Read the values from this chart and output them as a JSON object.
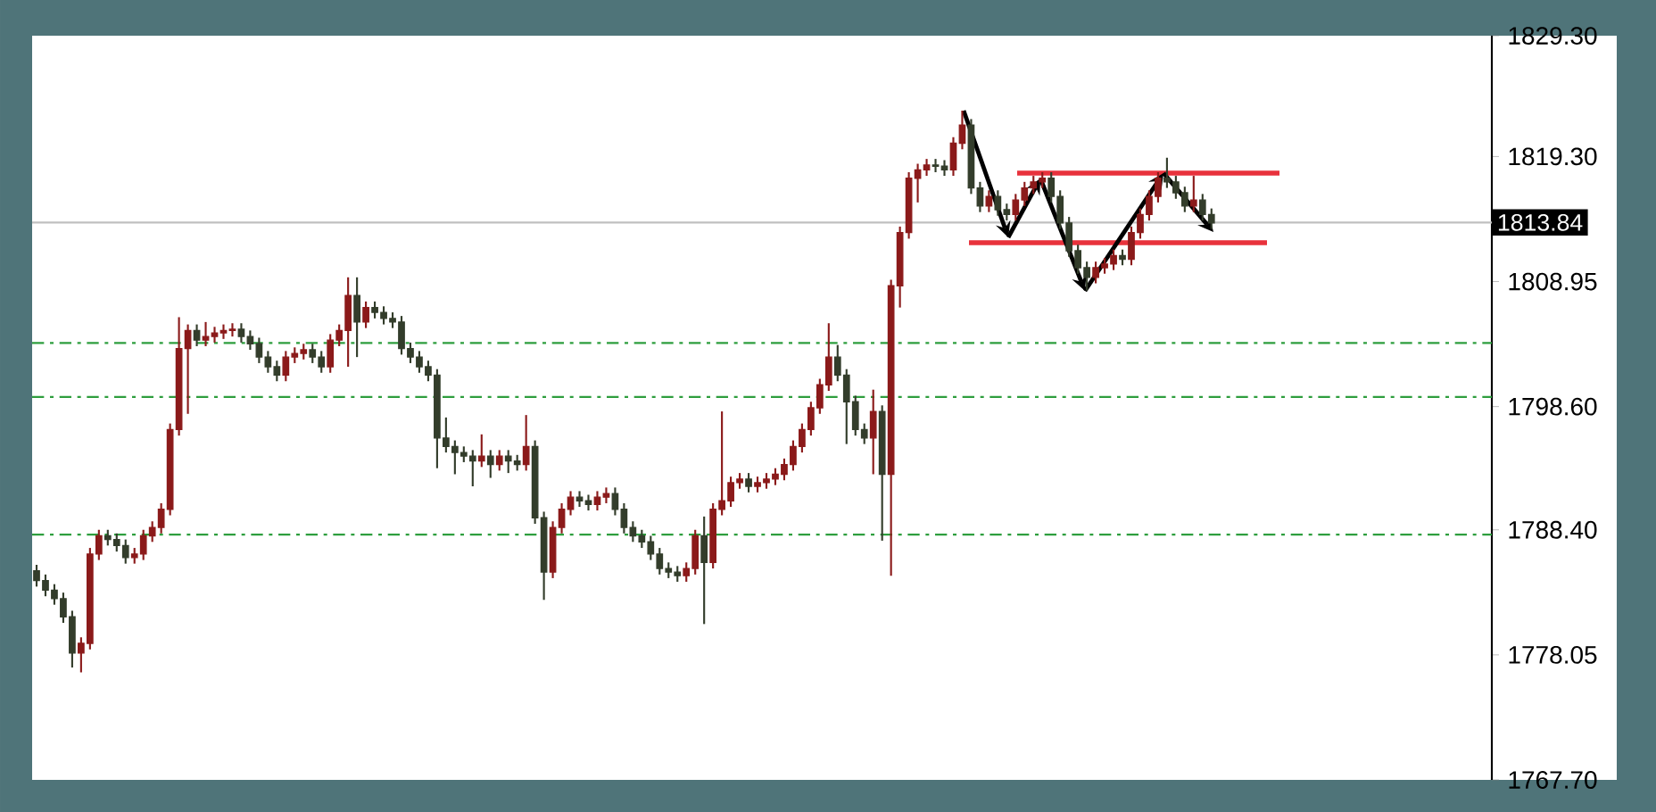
{
  "chart_data": {
    "type": "candlestick",
    "categories": [
      null,
      null,
      null,
      null,
      null,
      null,
      null,
      null,
      null,
      null,
      null,
      null,
      null,
      null,
      null,
      null,
      null,
      null,
      null,
      null,
      null,
      null,
      null,
      null,
      null,
      null,
      null,
      null,
      null,
      null,
      null,
      null,
      null,
      null,
      null,
      null,
      null,
      null,
      null,
      null,
      null,
      null,
      null,
      null,
      null,
      null,
      null,
      null,
      null,
      null,
      null,
      null,
      null,
      null,
      null,
      null,
      null,
      null,
      null,
      null,
      null,
      null,
      null,
      null,
      null,
      null,
      null,
      null,
      null,
      null,
      null,
      null,
      null,
      null,
      null,
      null,
      null,
      null,
      null,
      null,
      null,
      null,
      null,
      null,
      null,
      null,
      null,
      null,
      null,
      null,
      null,
      null,
      null,
      null,
      null,
      null,
      null,
      null,
      null,
      null,
      null,
      null,
      null,
      null,
      null,
      null,
      null,
      null,
      null,
      null,
      null,
      null,
      null,
      null,
      null,
      null,
      null,
      null,
      null,
      null,
      null,
      null,
      null,
      null,
      null,
      null,
      null,
      null,
      null,
      null,
      null,
      null,
      null,
      null,
      null,
      null,
      null,
      null,
      null,
      null,
      null,
      null,
      null,
      null,
      null,
      null,
      null,
      null,
      null,
      null,
      null,
      null,
      null,
      null,
      null,
      null,
      null,
      null,
      null,
      null,
      null,
      null,
      null,
      null
    ],
    "ohlc": [
      [
        1785.0,
        1785.5,
        1783.7,
        1784.2
      ],
      [
        1784.2,
        1784.7,
        1782.9,
        1783.4
      ],
      [
        1783.4,
        1783.9,
        1782.2,
        1782.7
      ],
      [
        1782.7,
        1783.2,
        1780.7,
        1781.2
      ],
      [
        1781.2,
        1781.7,
        1777.0,
        1778.2
      ],
      [
        1778.2,
        1779.5,
        1776.6,
        1779.0
      ],
      [
        1779.0,
        1786.9,
        1778.5,
        1786.4
      ],
      [
        1786.4,
        1788.4,
        1785.9,
        1787.9
      ],
      [
        1787.9,
        1788.4,
        1787.1,
        1787.6
      ],
      [
        1787.6,
        1788.1,
        1786.6,
        1787.1
      ],
      [
        1787.1,
        1787.6,
        1785.6,
        1786.1
      ],
      [
        1786.1,
        1786.9,
        1785.6,
        1786.4
      ],
      [
        1786.4,
        1788.4,
        1785.9,
        1787.9
      ],
      [
        1787.9,
        1789.1,
        1787.4,
        1788.6
      ],
      [
        1788.6,
        1790.6,
        1788.1,
        1790.1
      ],
      [
        1790.1,
        1797.2,
        1789.6,
        1796.7
      ],
      [
        1796.7,
        1806.0,
        1796.2,
        1803.4
      ],
      [
        1803.4,
        1805.4,
        1798.0,
        1804.9
      ],
      [
        1804.9,
        1805.4,
        1803.6,
        1804.1
      ],
      [
        1804.1,
        1805.6,
        1803.6,
        1804.4
      ],
      [
        1804.4,
        1805.2,
        1803.9,
        1804.7
      ],
      [
        1804.7,
        1805.4,
        1804.2,
        1804.9
      ],
      [
        1804.9,
        1805.5,
        1804.4,
        1805.0
      ],
      [
        1805.0,
        1805.5,
        1803.9,
        1804.4
      ],
      [
        1804.4,
        1804.9,
        1803.3,
        1803.8
      ],
      [
        1803.8,
        1804.3,
        1802.2,
        1802.7
      ],
      [
        1802.7,
        1803.2,
        1801.4,
        1801.9
      ],
      [
        1801.9,
        1802.4,
        1800.7,
        1801.2
      ],
      [
        1801.2,
        1803.2,
        1800.7,
        1802.7
      ],
      [
        1802.7,
        1803.5,
        1802.2,
        1803.0
      ],
      [
        1803.0,
        1803.8,
        1802.5,
        1803.3
      ],
      [
        1803.3,
        1803.8,
        1802.2,
        1802.7
      ],
      [
        1802.7,
        1803.2,
        1801.4,
        1801.9
      ],
      [
        1801.9,
        1804.6,
        1801.4,
        1804.1
      ],
      [
        1804.1,
        1805.4,
        1803.6,
        1804.9
      ],
      [
        1804.9,
        1809.3,
        1801.9,
        1807.8
      ],
      [
        1807.8,
        1809.3,
        1802.7,
        1805.6
      ],
      [
        1805.6,
        1807.3,
        1805.1,
        1806.8
      ],
      [
        1806.8,
        1807.3,
        1805.9,
        1806.4
      ],
      [
        1806.4,
        1806.9,
        1805.4,
        1805.9
      ],
      [
        1805.9,
        1806.4,
        1805.1,
        1805.6
      ],
      [
        1805.6,
        1806.1,
        1802.9,
        1803.4
      ],
      [
        1803.4,
        1803.9,
        1802.2,
        1802.7
      ],
      [
        1802.7,
        1803.2,
        1801.4,
        1801.9
      ],
      [
        1801.9,
        1802.4,
        1800.7,
        1801.2
      ],
      [
        1801.2,
        1801.7,
        1793.5,
        1796.0
      ],
      [
        1796.0,
        1797.7,
        1794.8,
        1795.3
      ],
      [
        1795.3,
        1795.8,
        1793.0,
        1794.8
      ],
      [
        1794.8,
        1795.3,
        1794.0,
        1794.5
      ],
      [
        1794.5,
        1795.0,
        1792.0,
        1794.1
      ],
      [
        1794.1,
        1796.3,
        1793.6,
        1794.5
      ],
      [
        1794.5,
        1795.0,
        1792.7,
        1793.8
      ],
      [
        1793.8,
        1795.0,
        1793.3,
        1794.5
      ],
      [
        1794.5,
        1795.0,
        1793.1,
        1794.1
      ],
      [
        1794.1,
        1794.6,
        1793.3,
        1793.8
      ],
      [
        1793.8,
        1797.9,
        1793.3,
        1795.3
      ],
      [
        1795.3,
        1795.8,
        1788.9,
        1789.4
      ],
      [
        1789.4,
        1789.9,
        1782.6,
        1784.9
      ],
      [
        1784.9,
        1789.1,
        1784.4,
        1788.6
      ],
      [
        1788.6,
        1790.6,
        1788.1,
        1790.1
      ],
      [
        1790.1,
        1791.6,
        1789.6,
        1791.1
      ],
      [
        1791.1,
        1791.6,
        1790.3,
        1790.8
      ],
      [
        1790.8,
        1791.3,
        1790.0,
        1790.5
      ],
      [
        1790.5,
        1791.6,
        1790.0,
        1791.1
      ],
      [
        1791.1,
        1791.9,
        1790.6,
        1791.4
      ],
      [
        1791.4,
        1791.9,
        1789.6,
        1790.1
      ],
      [
        1790.1,
        1790.6,
        1788.1,
        1788.6
      ],
      [
        1788.6,
        1789.1,
        1787.4,
        1787.9
      ],
      [
        1787.9,
        1788.4,
        1786.9,
        1787.4
      ],
      [
        1787.4,
        1787.9,
        1785.9,
        1786.4
      ],
      [
        1786.4,
        1786.9,
        1784.7,
        1785.2
      ],
      [
        1785.2,
        1785.7,
        1784.4,
        1784.9
      ],
      [
        1784.9,
        1785.4,
        1784.1,
        1784.6
      ],
      [
        1784.6,
        1785.7,
        1784.1,
        1785.2
      ],
      [
        1785.2,
        1788.4,
        1784.7,
        1787.9
      ],
      [
        1787.9,
        1789.5,
        1780.6,
        1785.7
      ],
      [
        1785.7,
        1790.6,
        1785.2,
        1790.1
      ],
      [
        1790.1,
        1798.2,
        1789.6,
        1790.8
      ],
      [
        1790.8,
        1792.8,
        1790.3,
        1792.3
      ],
      [
        1792.3,
        1793.1,
        1791.8,
        1792.6
      ],
      [
        1792.6,
        1793.1,
        1791.5,
        1792.0
      ],
      [
        1792.0,
        1792.8,
        1791.5,
        1792.3
      ],
      [
        1792.3,
        1793.1,
        1791.8,
        1792.6
      ],
      [
        1792.6,
        1793.5,
        1792.1,
        1793.0
      ],
      [
        1793.0,
        1794.3,
        1792.5,
        1793.8
      ],
      [
        1793.8,
        1795.8,
        1793.3,
        1795.3
      ],
      [
        1795.3,
        1797.2,
        1794.8,
        1796.7
      ],
      [
        1796.7,
        1799.0,
        1796.2,
        1798.5
      ],
      [
        1798.5,
        1800.9,
        1798.0,
        1800.4
      ],
      [
        1800.4,
        1805.5,
        1799.9,
        1802.7
      ],
      [
        1802.7,
        1803.7,
        1800.7,
        1801.2
      ],
      [
        1801.2,
        1801.7,
        1795.5,
        1799.0
      ],
      [
        1799.0,
        1799.5,
        1796.2,
        1796.7
      ],
      [
        1796.7,
        1797.2,
        1795.5,
        1796.0
      ],
      [
        1796.0,
        1800.0,
        1793.0,
        1798.2
      ],
      [
        1798.2,
        1798.7,
        1787.5,
        1793.0
      ],
      [
        1793.0,
        1809.1,
        1784.6,
        1808.6
      ],
      [
        1808.6,
        1813.5,
        1806.8,
        1813.0
      ],
      [
        1813.0,
        1818.0,
        1812.5,
        1817.5
      ],
      [
        1817.5,
        1818.7,
        1815.5,
        1818.2
      ],
      [
        1818.2,
        1819.1,
        1817.7,
        1818.6
      ],
      [
        1818.6,
        1819.1,
        1818.0,
        1818.5
      ],
      [
        1818.5,
        1819.0,
        1817.7,
        1818.2
      ],
      [
        1818.2,
        1820.9,
        1817.7,
        1820.4
      ],
      [
        1820.4,
        1823.1,
        1819.9,
        1821.9
      ],
      [
        1821.9,
        1822.4,
        1816.2,
        1816.7
      ],
      [
        1816.7,
        1817.2,
        1814.7,
        1815.2
      ],
      [
        1815.2,
        1816.5,
        1814.7,
        1816.0
      ],
      [
        1816.0,
        1816.5,
        1814.4,
        1814.9
      ],
      [
        1814.9,
        1815.4,
        1814.0,
        1814.5
      ],
      [
        1814.5,
        1816.2,
        1814.0,
        1815.7
      ],
      [
        1815.7,
        1817.2,
        1815.2,
        1816.7
      ],
      [
        1816.7,
        1817.7,
        1816.2,
        1817.2
      ],
      [
        1817.2,
        1818.0,
        1816.7,
        1817.5
      ],
      [
        1817.5,
        1818.0,
        1815.5,
        1816.0
      ],
      [
        1816.0,
        1816.5,
        1813.3,
        1813.8
      ],
      [
        1813.8,
        1814.3,
        1811.0,
        1811.5
      ],
      [
        1811.5,
        1812.0,
        1809.6,
        1810.1
      ],
      [
        1810.1,
        1810.6,
        1808.2,
        1809.3
      ],
      [
        1809.3,
        1810.6,
        1808.8,
        1810.1
      ],
      [
        1810.1,
        1810.9,
        1809.6,
        1810.4
      ],
      [
        1810.4,
        1811.6,
        1809.9,
        1811.1
      ],
      [
        1811.1,
        1811.6,
        1810.3,
        1810.8
      ],
      [
        1810.8,
        1813.5,
        1810.3,
        1813.0
      ],
      [
        1813.0,
        1815.0,
        1812.5,
        1814.5
      ],
      [
        1814.5,
        1816.5,
        1814.0,
        1816.0
      ],
      [
        1816.0,
        1818.0,
        1815.5,
        1817.5
      ],
      [
        1817.5,
        1819.2,
        1816.7,
        1817.2
      ],
      [
        1817.2,
        1817.7,
        1815.8,
        1816.3
      ],
      [
        1816.3,
        1816.8,
        1814.7,
        1815.2
      ],
      [
        1815.2,
        1817.7,
        1814.7,
        1815.7
      ],
      [
        1815.7,
        1816.2,
        1814.0,
        1814.5
      ],
      [
        1814.5,
        1815.0,
        1813.3,
        1813.8
      ],
      null,
      null,
      null,
      null,
      null,
      null,
      null,
      null,
      null,
      null,
      null,
      null,
      null,
      null,
      null,
      null,
      null,
      null,
      null,
      null,
      null,
      null,
      null,
      null,
      null,
      null,
      null,
      null,
      null,
      null,
      null
    ],
    "colors": [
      "#333d2b",
      "#333d2b",
      "#333d2b",
      "#333d2b",
      "#333d2b",
      "#8b1a1a",
      "#8b1a1a",
      "#8b1a1a",
      "#333d2b",
      "#333d2b",
      "#333d2b",
      "#8b1a1a",
      "#8b1a1a",
      "#8b1a1a",
      "#8b1a1a",
      "#8b1a1a",
      "#8b1a1a",
      "#8b1a1a",
      "#333d2b",
      "#8b1a1a",
      "#8b1a1a",
      "#8b1a1a",
      "#8b1a1a",
      "#333d2b",
      "#333d2b",
      "#333d2b",
      "#333d2b",
      "#333d2b",
      "#8b1a1a",
      "#8b1a1a",
      "#8b1a1a",
      "#333d2b",
      "#333d2b",
      "#8b1a1a",
      "#8b1a1a",
      "#8b1a1a",
      "#333d2b",
      "#8b1a1a",
      "#333d2b",
      "#333d2b",
      "#333d2b",
      "#333d2b",
      "#333d2b",
      "#333d2b",
      "#333d2b",
      "#333d2b",
      "#333d2b",
      "#333d2b",
      "#333d2b",
      "#333d2b",
      "#8b1a1a",
      "#333d2b",
      "#8b1a1a",
      "#333d2b",
      "#333d2b",
      "#8b1a1a",
      "#333d2b",
      "#333d2b",
      "#8b1a1a",
      "#8b1a1a",
      "#8b1a1a",
      "#333d2b",
      "#333d2b",
      "#8b1a1a",
      "#8b1a1a",
      "#333d2b",
      "#333d2b",
      "#333d2b",
      "#333d2b",
      "#333d2b",
      "#333d2b",
      "#333d2b",
      "#333d2b",
      "#8b1a1a",
      "#8b1a1a",
      "#333d2b",
      "#8b1a1a",
      "#8b1a1a",
      "#8b1a1a",
      "#8b1a1a",
      "#333d2b",
      "#8b1a1a",
      "#8b1a1a",
      "#8b1a1a",
      "#8b1a1a",
      "#8b1a1a",
      "#8b1a1a",
      "#8b1a1a",
      "#8b1a1a",
      "#8b1a1a",
      "#333d2b",
      "#333d2b",
      "#333d2b",
      "#333d2b",
      "#8b1a1a",
      "#333d2b",
      "#8b1a1a",
      "#8b1a1a",
      "#8b1a1a",
      "#8b1a1a",
      "#8b1a1a",
      "#333d2b",
      "#333d2b",
      "#8b1a1a",
      "#8b1a1a",
      "#333d2b",
      "#333d2b",
      "#8b1a1a",
      "#333d2b",
      "#333d2b",
      "#8b1a1a",
      "#8b1a1a",
      "#8b1a1a",
      "#8b1a1a",
      "#333d2b",
      "#333d2b",
      "#333d2b",
      "#333d2b",
      "#333d2b",
      "#8b1a1a",
      "#8b1a1a",
      "#8b1a1a",
      "#333d2b",
      "#8b1a1a",
      "#8b1a1a",
      "#8b1a1a",
      "#8b1a1a",
      "#333d2b",
      "#333d2b",
      "#333d2b",
      "#8b1a1a",
      "#333d2b",
      "#333d2b",
      null,
      null,
      null,
      null,
      null,
      null,
      null,
      null,
      null,
      null,
      null,
      null,
      null,
      null,
      null,
      null,
      null,
      null,
      null,
      null,
      null,
      null,
      null,
      null,
      null,
      null,
      null,
      null,
      null,
      null,
      null
    ],
    "ylim": [
      1767.7,
      1829.3
    ],
    "yticks": [
      {
        "value": 1767.7,
        "label": "1767.70"
      },
      {
        "value": 1778.05,
        "label": "1778.05"
      },
      {
        "value": 1788.4,
        "label": "1788.40"
      },
      {
        "value": 1798.6,
        "label": "1798.60"
      },
      {
        "value": 1808.95,
        "label": "1808.95"
      },
      {
        "value": 1819.3,
        "label": "1819.30"
      },
      {
        "value": 1829.3,
        "label": "1829.30"
      }
    ],
    "tick_labels": "y",
    "ref_lines": [
      {
        "axis": "y",
        "value": 1803.86,
        "color": "#2e9e3e",
        "line_style": "dashed"
      },
      {
        "axis": "y",
        "value": 1799.4,
        "color": "#2e9e3e",
        "line_style": "dashed"
      },
      {
        "axis": "y",
        "value": 1788.0,
        "color": "#2e9e3e",
        "line_style": "dashed"
      },
      {
        "axis": "y",
        "value": 1813.84,
        "label": "1813.84",
        "color": "#c0c0c0",
        "line_style": "solid"
      }
    ]
  }
}
